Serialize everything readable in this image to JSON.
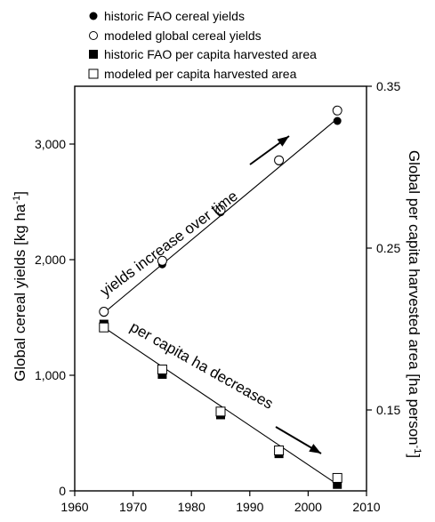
{
  "chart_data": {
    "type": "scatter",
    "x_axis": {
      "range": [
        1960,
        2010
      ],
      "ticks": [
        1960,
        1970,
        1980,
        1990,
        2000,
        2010
      ],
      "tick_labels": [
        "1960",
        "1970",
        "1980",
        "1990",
        "2000",
        "2010"
      ]
    },
    "y_left": {
      "label": "Global cereal yields [kg ha-1]",
      "label_main": "Global cereal yields [kg ha",
      "label_sup": "-1",
      "label_end": "]",
      "range": [
        0,
        3500
      ],
      "ticks": [
        0,
        1000,
        2000,
        3000
      ],
      "tick_labels": [
        "0",
        "1,000",
        "2,000",
        "3,000"
      ]
    },
    "y_right": {
      "label": "Global per capita harvested area [ha person-1]",
      "label_main": "Global per capita harvested area [ha person",
      "label_sup": "-1",
      "label_end": "]",
      "range": [
        0.1,
        0.35
      ],
      "ticks": [
        0.15,
        0.25,
        0.35
      ],
      "tick_labels": [
        "0.15",
        "0.25",
        "0.35"
      ]
    },
    "legend_position": "top-left",
    "series": [
      {
        "name": "historic FAO cereal yields",
        "marker": "filled-circle",
        "axis": "left",
        "x": [
          1965,
          1975,
          1985,
          1995,
          2005
        ],
        "y": [
          1540,
          1960,
          2410,
          2850,
          3200
        ]
      },
      {
        "name": "modeled global cereal yields",
        "marker": "open-circle",
        "axis": "left",
        "x": [
          1965,
          1975,
          1985,
          1995,
          2005
        ],
        "y": [
          1550,
          1990,
          2430,
          2860,
          3290
        ]
      },
      {
        "name": "historic FAO per capita harvested area",
        "marker": "filled-square",
        "axis": "right",
        "x": [
          1965,
          1975,
          1985,
          1995,
          2005
        ],
        "y": [
          0.203,
          0.172,
          0.147,
          0.123,
          0.104
        ]
      },
      {
        "name": "modeled per capita harvested area",
        "marker": "open-square",
        "axis": "right",
        "x": [
          1965,
          1975,
          1985,
          1995,
          2005
        ],
        "y": [
          0.201,
          0.175,
          0.149,
          0.125,
          0.108
        ]
      }
    ],
    "trend_lines": [
      {
        "axis": "left",
        "x": [
          1965,
          2005
        ],
        "y": [
          1540,
          3220
        ]
      },
      {
        "axis": "right",
        "x": [
          1965,
          2005
        ],
        "y": [
          0.201,
          0.104
        ]
      }
    ],
    "annotations": [
      {
        "text": "yields increase over time"
      },
      {
        "text": "per capita ha decreases"
      }
    ]
  }
}
